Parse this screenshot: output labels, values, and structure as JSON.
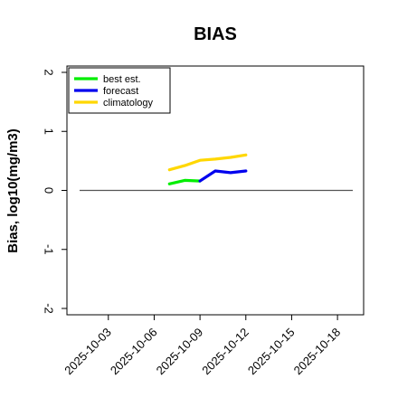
{
  "chart_data": {
    "type": "line",
    "title": "BIAS",
    "xlabel": "",
    "ylabel": "Bias, log10(mg/m3)",
    "xlim": [
      "2025-10-01",
      "2025-10-19"
    ],
    "ylim": [
      -2,
      2
    ],
    "yticks": [
      -2,
      -1,
      0,
      1,
      2
    ],
    "ytick_labels": [
      "-2",
      "-1",
      "0",
      "1",
      "2"
    ],
    "xticks": [
      "2025-10-03",
      "2025-10-06",
      "2025-10-09",
      "2025-10-12",
      "2025-10-15",
      "2025-10-18"
    ],
    "xtick_labels": [
      "2025-10-03",
      "2025-10-06",
      "2025-10-09",
      "2025-10-12",
      "2025-10-15",
      "2025-10-18"
    ],
    "highlight_tick": "2025-10-09",
    "grid": false,
    "legend_position": "top-left",
    "reference_line": 0,
    "series": [
      {
        "name": "best est.",
        "color": "#00ee00",
        "x": [
          "2025-10-07",
          "2025-10-08",
          "2025-10-09"
        ],
        "values": [
          0.11,
          0.17,
          0.16
        ]
      },
      {
        "name": "forecast",
        "color": "#0000ee",
        "x": [
          "2025-10-09",
          "2025-10-10",
          "2025-10-11",
          "2025-10-12"
        ],
        "values": [
          0.16,
          0.33,
          0.3,
          0.33
        ]
      },
      {
        "name": "climatology",
        "color": "#ffd700",
        "x": [
          "2025-10-07",
          "2025-10-08",
          "2025-10-09",
          "2025-10-10",
          "2025-10-11",
          "2025-10-12"
        ],
        "values": [
          0.35,
          0.42,
          0.51,
          0.53,
          0.56,
          0.6
        ]
      }
    ]
  },
  "colors": {
    "axis": "#000000",
    "reference_line": "#555555",
    "highlight_tick": "#228b22"
  }
}
